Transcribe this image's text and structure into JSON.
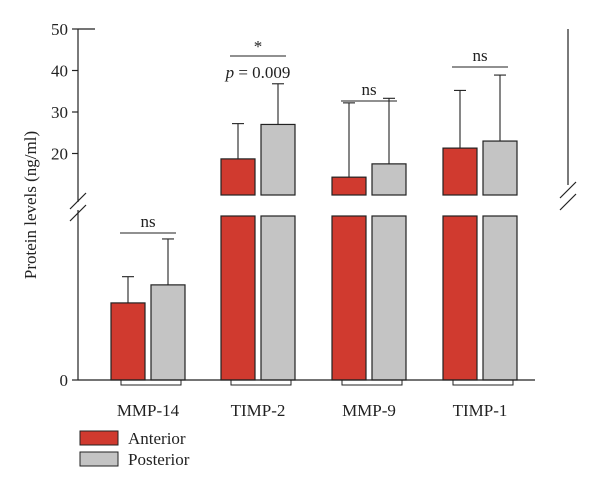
{
  "chart_data": {
    "type": "bar",
    "ylabel": "Protein levels (ng/ml)",
    "upper_axis": {
      "ylim": [
        10,
        50
      ],
      "ticks": [
        20,
        30,
        40,
        50
      ]
    },
    "lower_axis": {
      "bottom_tick": 0
    },
    "axis_break": true,
    "categories": [
      "MMP-14",
      "TIMP-2",
      "MMP-9",
      "TIMP-1"
    ],
    "series": [
      {
        "name": "Anterior",
        "color": "#d03a2f",
        "values": [
          null,
          18.7,
          14.3,
          21.3
        ],
        "error_upper": [
          null,
          27.2,
          32.2,
          35.2
        ]
      },
      {
        "name": "Posterior",
        "color": "#c4c4c4",
        "values": [
          null,
          27.0,
          17.5,
          23.0
        ],
        "error_upper": [
          null,
          36.8,
          33.3,
          38.9
        ]
      }
    ],
    "lower_section_levels": {
      "note_units": "fraction of lower panel height (0 = axis zero, 1 = break)",
      "anterior": [
        0.47,
        1,
        1,
        1
      ],
      "anterior_error": [
        0.63,
        1,
        1,
        1
      ],
      "posterior": [
        0.58,
        1,
        1,
        1
      ],
      "posterior_error": [
        0.86,
        1,
        1,
        1
      ]
    },
    "annotations": [
      {
        "category": "MMP-14",
        "lines": [
          "ns"
        ]
      },
      {
        "category": "TIMP-2",
        "lines": [
          "*",
          "p = 0.009"
        ]
      },
      {
        "category": "MMP-9",
        "lines": [
          "ns"
        ]
      },
      {
        "category": "TIMP-1",
        "lines": [
          "ns"
        ]
      }
    ],
    "legend": {
      "placement": "bottom-left",
      "items": [
        "Anterior",
        "Posterior"
      ]
    }
  }
}
